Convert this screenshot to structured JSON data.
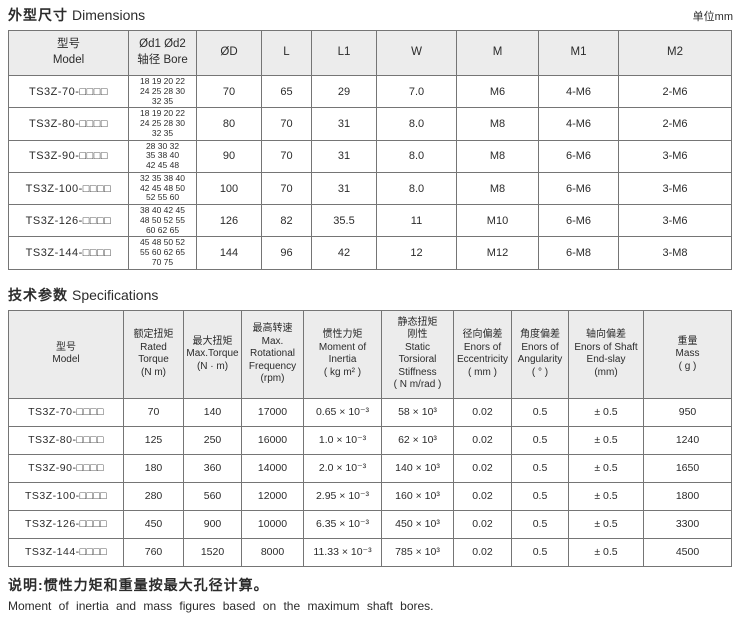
{
  "page": {
    "unit_label": "单位mm",
    "note_zh": "说明:惯性力矩和重量按最大孔径计算。",
    "note_en": "Moment of inertia and mass figures based on the maximum shaft bores."
  },
  "dimensions_table": {
    "title_zh": "外型尺寸",
    "title_en": "Dimensions",
    "headers": [
      "型号\nModel",
      "Ød1 Ød2\n轴径 Bore",
      "ØD",
      "L",
      "L1",
      "W",
      "M",
      "M1",
      "M2"
    ],
    "rows": [
      [
        "TS3Z-70-□□□□",
        "18 19 20 22\n24 25 28 30\n32 35",
        "70",
        "65",
        "29",
        "7.0",
        "M6",
        "4-M6",
        "2-M6"
      ],
      [
        "TS3Z-80-□□□□",
        "18 19 20 22\n24 25 28 30\n32 35",
        "80",
        "70",
        "31",
        "8.0",
        "M8",
        "4-M6",
        "2-M6"
      ],
      [
        "TS3Z-90-□□□□",
        "28 30 32\n35 38 40\n42 45 48",
        "90",
        "70",
        "31",
        "8.0",
        "M8",
        "6-M6",
        "3-M6"
      ],
      [
        "TS3Z-100-□□□□",
        "32 35 38 40\n42 45 48 50\n52 55 60",
        "100",
        "70",
        "31",
        "8.0",
        "M8",
        "6-M6",
        "3-M6"
      ],
      [
        "TS3Z-126-□□□□",
        "38 40 42 45\n48 50 52 55\n60 62 65",
        "126",
        "82",
        "35.5",
        "11",
        "M10",
        "6-M6",
        "3-M6"
      ],
      [
        "TS3Z-144-□□□□",
        "45 48 50 52\n55 60 62 65\n70 75",
        "144",
        "96",
        "42",
        "12",
        "M12",
        "6-M8",
        "3-M8"
      ]
    ]
  },
  "specifications_table": {
    "title_zh": "技术参数",
    "title_en": "Specifications",
    "headers": [
      "型号\nModel",
      "额定扭矩\nRated\nTorque\n(N m)",
      "最大扭矩\nMax.Torque\n(N · m)",
      "最高转速\nMax.\nRotational\nFrequency\n(rpm)",
      "惯性力矩\nMoment of\nInertia\n( kg m² )",
      "静态扭矩\n刚性\nStatic\nTorsioral\nStiffness\n( N m/rad )",
      "径向偏差\nEnors of\nEccentricity\n( mm )",
      "角度偏差\nEnors of\nAngularity\n( ° )",
      "轴向偏差\nEnors of Shaft\nEnd-slay\n(mm)",
      "重量\nMass\n( g )"
    ],
    "rows": [
      [
        "TS3Z-70-□□□□",
        "70",
        "140",
        "17000",
        "0.65 × 10⁻³",
        "58 × 10³",
        "0.02",
        "0.5",
        "± 0.5",
        "950"
      ],
      [
        "TS3Z-80-□□□□",
        "125",
        "250",
        "16000",
        "1.0 × 10⁻³",
        "62 × 10³",
        "0.02",
        "0.5",
        "± 0.5",
        "1240"
      ],
      [
        "TS3Z-90-□□□□",
        "180",
        "360",
        "14000",
        "2.0 × 10⁻³",
        "140 × 10³",
        "0.02",
        "0.5",
        "± 0.5",
        "1650"
      ],
      [
        "TS3Z-100-□□□□",
        "280",
        "560",
        "12000",
        "2.95 × 10⁻³",
        "160 × 10³",
        "0.02",
        "0.5",
        "± 0.5",
        "1800"
      ],
      [
        "TS3Z-126-□□□□",
        "450",
        "900",
        "10000",
        "6.35 × 10⁻³",
        "450 × 10³",
        "0.02",
        "0.5",
        "± 0.5",
        "3300"
      ],
      [
        "TS3Z-144-□□□□",
        "760",
        "1520",
        "8000",
        "11.33 × 10⁻³",
        "785 × 10³",
        "0.02",
        "0.5",
        "± 0.5",
        "4500"
      ]
    ]
  }
}
